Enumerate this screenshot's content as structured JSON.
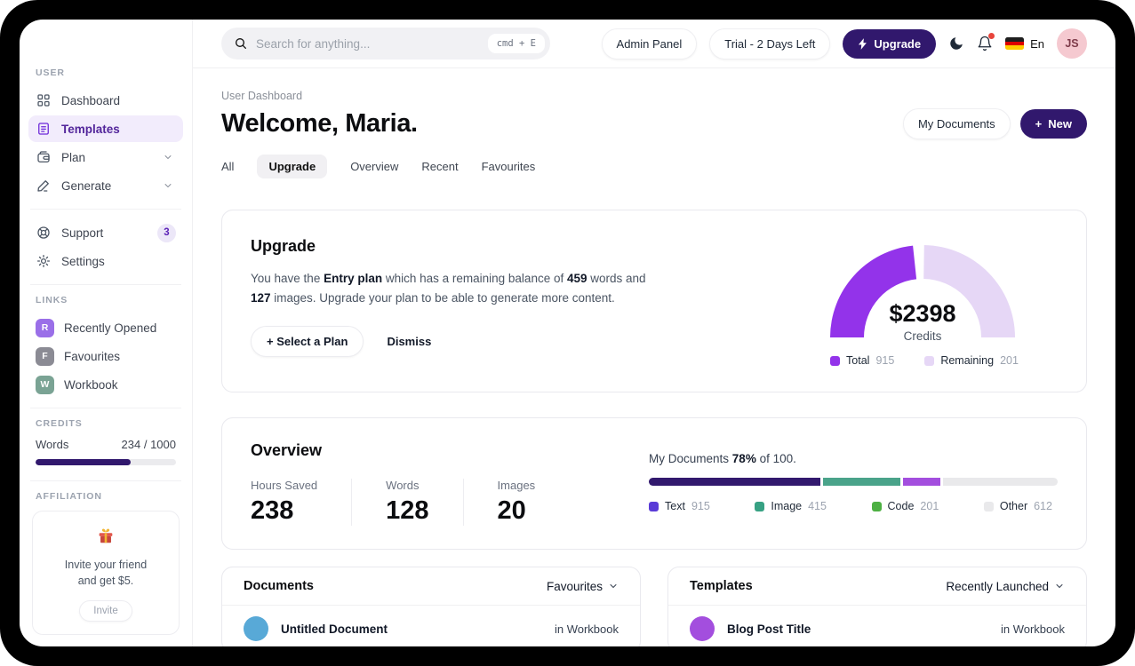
{
  "topbar": {
    "search": {
      "placeholder": "Search for anything...",
      "shortcut": "cmd + E"
    },
    "admin_panel_label": "Admin Panel",
    "trial_label": "Trial - 2 Days Left",
    "upgrade_label": "Upgrade",
    "language_label": "En",
    "avatar_initials": "JS"
  },
  "sidebar": {
    "sections": {
      "user": "USER",
      "links": "LINKS",
      "credits": "CREDITS",
      "affiliation": "AFFILIATION"
    },
    "nav": {
      "dashboard": "Dashboard",
      "templates": "Templates",
      "plan": "Plan",
      "generate": "Generate",
      "support": "Support",
      "support_badge": "3",
      "settings": "Settings"
    },
    "links": [
      {
        "letter": "R",
        "label": "Recently Opened",
        "color": "#9a6fe8"
      },
      {
        "letter": "F",
        "label": "Favourites",
        "color": "#8b8b94"
      },
      {
        "letter": "W",
        "label": "Workbook",
        "color": "#7aa394"
      }
    ],
    "credits": {
      "label": "Words",
      "value": "234 / 1000",
      "bar_pct": 68,
      "bar_color": "#31186d"
    },
    "affiliation": {
      "text_line1": "Invite your friend",
      "text_line2": "and get $5.",
      "button_label": "Invite"
    }
  },
  "page": {
    "breadcrumb": "User Dashboard",
    "title": "Welcome, Maria.",
    "my_documents_label": "My Documents",
    "new_label": "New",
    "tabs": [
      "All",
      "Upgrade",
      "Overview",
      "Recent",
      "Favourites"
    ],
    "active_tab": "Upgrade"
  },
  "upgrade_card": {
    "title": "Upgrade",
    "body": {
      "p1": "You have the ",
      "b1": "Entry plan",
      "p2": " which has a remaining balance of ",
      "b2": "459",
      "p3": " words and ",
      "b3": "127",
      "p4": " images. Upgrade your plan to be able to generate more content."
    },
    "select_plan_label": "Select a Plan",
    "dismiss_label": "Dismiss",
    "gauge": {
      "center_value": "$2398",
      "center_label": "Credits",
      "legend": [
        {
          "name": "Total",
          "value": "915",
          "color": "#9333ea"
        },
        {
          "name": "Remaining",
          "value": "201",
          "color": "#e6d7f6"
        }
      ]
    }
  },
  "overview_card": {
    "title": "Overview",
    "stats": [
      {
        "label": "Hours Saved",
        "value": "238"
      },
      {
        "label": "Words",
        "value": "128"
      },
      {
        "label": "Images",
        "value": "20"
      }
    ],
    "progress": {
      "prefix": "My Documents",
      "pct": "78%",
      "suffix": "of 100.",
      "segments": [
        {
          "name": "Text",
          "value": 915,
          "bar_color": "#32196e",
          "legend_color": "#5a3bd7"
        },
        {
          "name": "Image",
          "value": 415,
          "bar_color": "#4aa38a",
          "legend_color": "#37a183"
        },
        {
          "name": "Code",
          "value": 201,
          "bar_color": "#a34ede",
          "legend_color": "#4db043"
        },
        {
          "name": "Other",
          "value": 612,
          "bar_color": "#e9e9eb",
          "legend_color": "#e9e9eb"
        }
      ]
    }
  },
  "documents_card": {
    "title": "Documents",
    "filter_label": "Favourites",
    "row": {
      "title": "Untitled Document",
      "location": "in Workbook",
      "avatar_color": "#58a9d7"
    }
  },
  "templates_card": {
    "title": "Templates",
    "filter_label": "Recently Launched",
    "row": {
      "title": "Blog Post Title",
      "location": "in Workbook",
      "avatar_color": "#a34ede"
    }
  },
  "chart_data": [
    {
      "type": "pie",
      "variant": "half-donut-gauge",
      "center_value": "$2398",
      "center_label": "Credits",
      "series": [
        {
          "name": "Total",
          "value": 915,
          "color": "#9333ea"
        },
        {
          "name": "Remaining",
          "value": 201,
          "color": "#e6d7f6"
        }
      ],
      "legend_position": "bottom"
    },
    {
      "type": "bar",
      "variant": "stacked-progress",
      "title": "My Documents 78% of 100.",
      "categories": [
        "Text",
        "Image",
        "Code",
        "Other"
      ],
      "values": [
        915,
        415,
        201,
        612
      ],
      "colors": [
        "#32196e",
        "#4aa38a",
        "#a34ede",
        "#e9e9eb"
      ],
      "legend_position": "bottom"
    }
  ]
}
